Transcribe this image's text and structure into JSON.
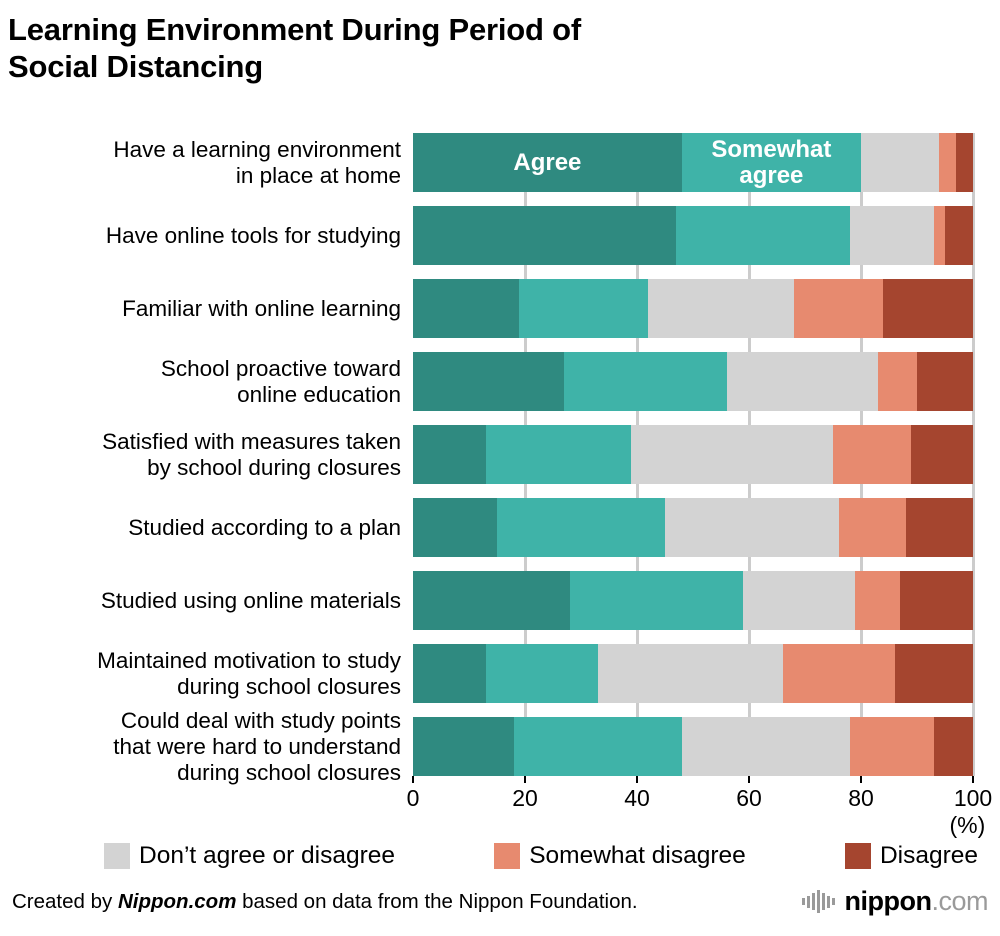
{
  "title_lines": [
    "Learning Environment During Period of",
    "Social Distancing"
  ],
  "chart_data": {
    "type": "bar",
    "orientation": "horizontal",
    "stacked": true,
    "title": "Learning Environment During Period of Social Distancing",
    "xlabel": "(%)",
    "xlim": [
      0,
      100
    ],
    "x_ticks": [
      0,
      20,
      40,
      60,
      80,
      100
    ],
    "grid": true,
    "categories": [
      "Have a learning environment in place at home",
      "Have online tools for studying",
      "Familiar with online learning",
      "School proactive toward online education",
      "Satisfied with measures taken by school during closures",
      "Studied according to a plan",
      "Studied using online materials",
      "Maintained motivation to study during school closures",
      "Could deal with study points that were hard to understand during school closures"
    ],
    "category_lines": [
      [
        "Have a learning environment",
        "in place at home"
      ],
      [
        "Have online tools for studying"
      ],
      [
        "Familiar with online learning"
      ],
      [
        "School proactive toward",
        "online education"
      ],
      [
        "Satisfied with measures taken",
        "by school during closures"
      ],
      [
        "Studied according to a plan"
      ],
      [
        "Studied using online materials"
      ],
      [
        "Maintained motivation to study",
        "during school closures"
      ],
      [
        "Could deal with study points",
        "that were hard to understand",
        "during school closures"
      ]
    ],
    "series": [
      {
        "key": "agree",
        "name": "Agree",
        "color": "#2f8a80",
        "values": [
          48,
          47,
          19,
          27,
          13,
          15,
          28,
          13,
          18
        ]
      },
      {
        "key": "somewhat-agree",
        "name": "Somewhat agree",
        "color": "#3fb3a8",
        "values": [
          32,
          31,
          23,
          29,
          26,
          30,
          31,
          20,
          30
        ]
      },
      {
        "key": "neither",
        "name": "Don’t agree or disagree",
        "color": "#d3d3d3",
        "values": [
          14,
          15,
          26,
          27,
          36,
          31,
          20,
          33,
          30
        ]
      },
      {
        "key": "somewhat-disagree",
        "name": "Somewhat disagree",
        "color": "#e78a6f",
        "values": [
          3,
          2,
          16,
          7,
          14,
          12,
          8,
          20,
          15
        ]
      },
      {
        "key": "disagree",
        "name": "Disagree",
        "color": "#a5452f",
        "values": [
          3,
          5,
          16,
          10,
          11,
          12,
          13,
          14,
          7
        ]
      }
    ],
    "inline_labels": [
      {
        "row": 0,
        "series_index": 0,
        "text": "Agree"
      },
      {
        "row": 0,
        "series_index": 1,
        "text": "Somewhat agree"
      }
    ],
    "legend": {
      "position": "bottom",
      "series_indexes": [
        2,
        3,
        4
      ]
    }
  },
  "footer": {
    "credit_prefix": "Created by ",
    "credit_source": "Nippon.com",
    "credit_suffix": " based on data from the Nippon Foundation.",
    "logo_name": "nippon",
    "logo_suffix": ".com"
  }
}
